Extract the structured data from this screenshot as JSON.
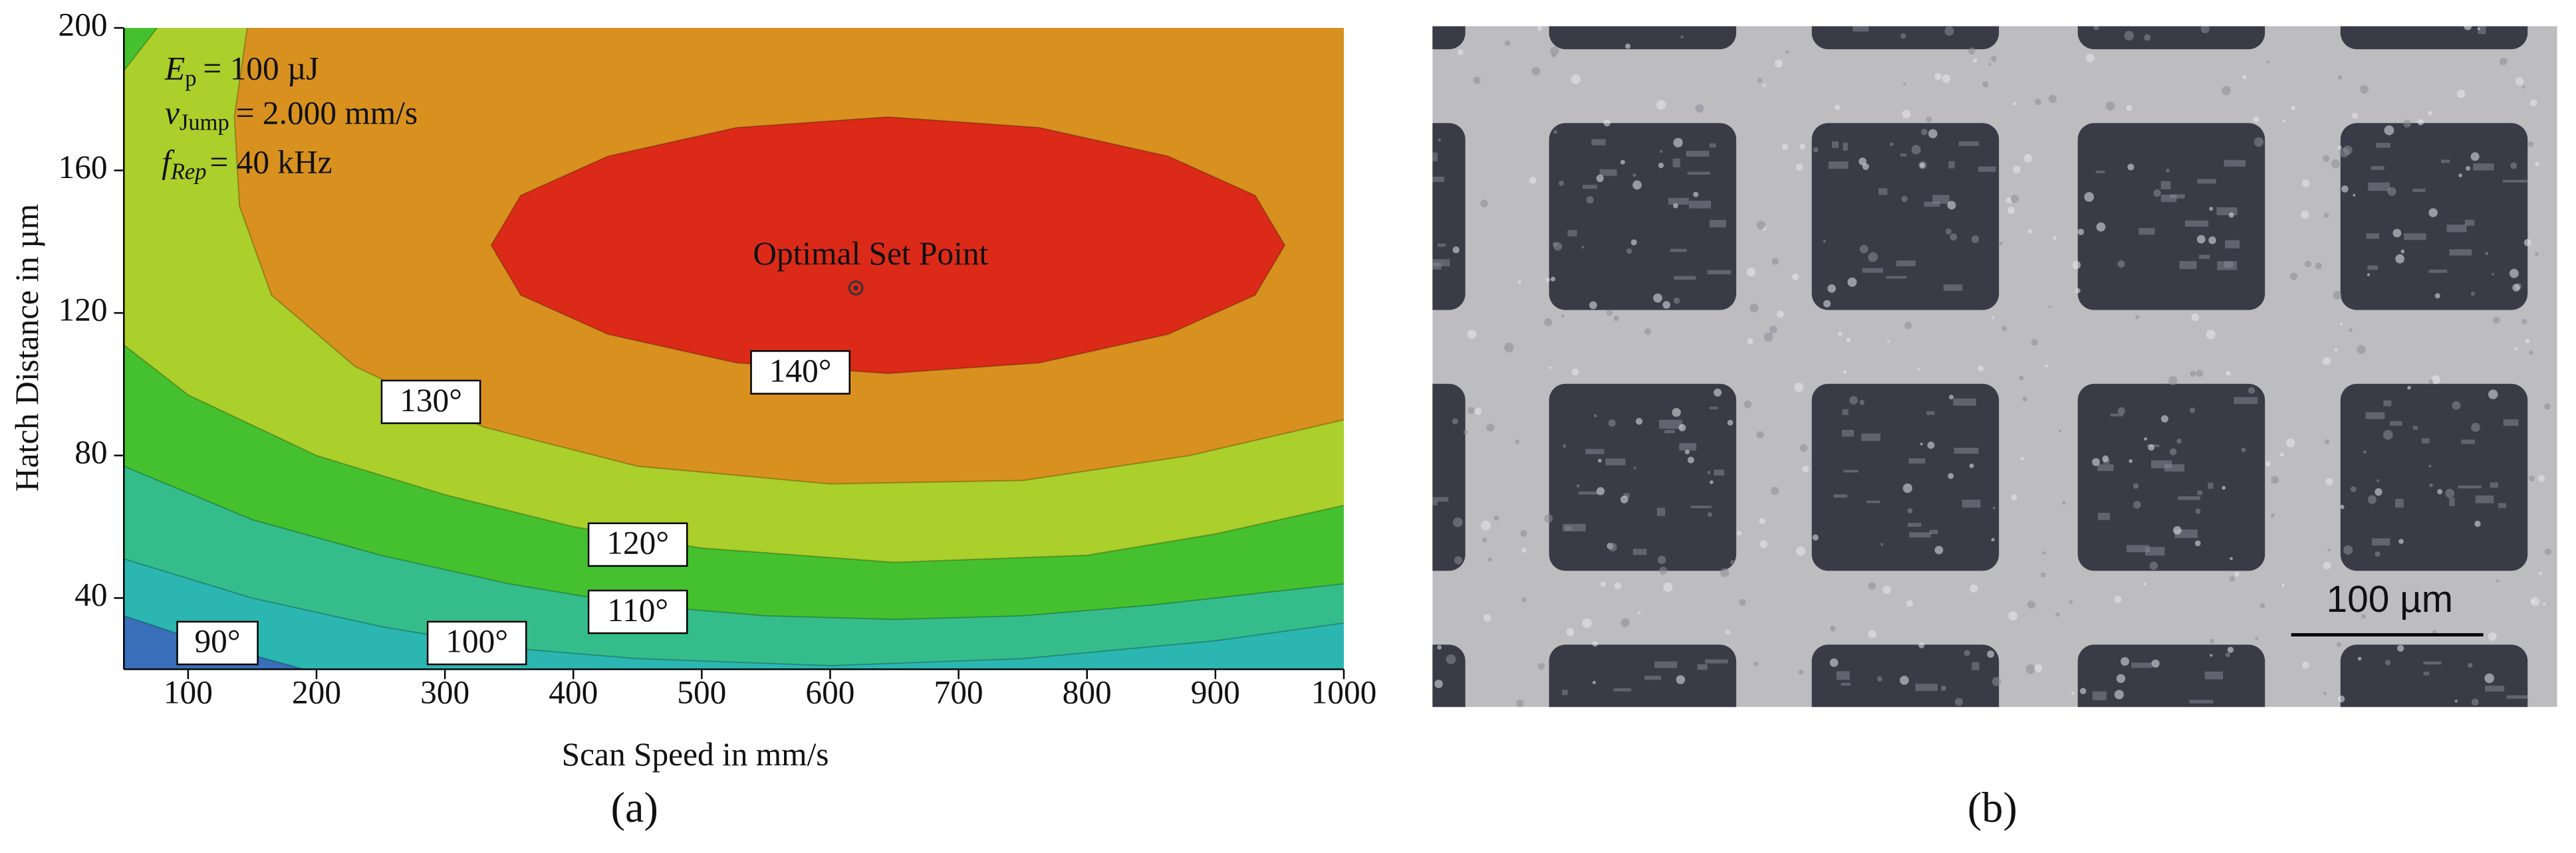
{
  "chart_data": {
    "type": "contour",
    "xlabel": "Scan Speed in mm/s",
    "ylabel": "Hatch Distance in µm",
    "xlim": [
      50,
      1000
    ],
    "ylim": [
      20,
      200
    ],
    "xticks": [
      100,
      200,
      300,
      400,
      500,
      600,
      700,
      800,
      900,
      1000
    ],
    "yticks": [
      40,
      80,
      120,
      160,
      200
    ],
    "background_color": "#3a6fb9",
    "contours": [
      {
        "level": 90,
        "label": "90°",
        "color": "#2bb6b2",
        "x": [
          50,
          100,
          150,
          190
        ],
        "y": [
          35,
          29,
          24,
          20
        ]
      },
      {
        "level": 100,
        "label": "100°",
        "color": "#34bd8b",
        "x": [
          50,
          150,
          250,
          350,
          450,
          600,
          750,
          900,
          1000
        ],
        "y": [
          51,
          40,
          32,
          26,
          23,
          21,
          23,
          28,
          33
        ]
      },
      {
        "level": 110,
        "label": "110°",
        "color": "#45c12f",
        "x": [
          50,
          150,
          250,
          350,
          450,
          550,
          650,
          750,
          850,
          1000
        ],
        "y": [
          77,
          62,
          52,
          44,
          38,
          35,
          34,
          35,
          38,
          44
        ]
      },
      {
        "level": 120,
        "label": "120°",
        "color": "#abcf2b",
        "x": [
          50,
          100,
          200,
          300,
          400,
          500,
          650,
          800,
          900,
          1000,
          null,
          76,
          50
        ],
        "y": [
          111,
          97,
          80,
          69,
          60,
          54,
          50,
          52,
          58,
          66,
          null,
          200,
          188
        ]
      },
      {
        "level": 130,
        "label": "130°",
        "color": "#d8911f",
        "x": [
          146,
          136,
          140,
          165,
          230,
          330,
          450,
          600,
          750,
          880,
          1000
        ],
        "y": [
          200,
          175,
          150,
          125,
          105,
          88,
          77,
          72,
          73,
          80,
          90
        ]
      },
      {
        "level": 140,
        "label": "140°",
        "color": "#dc2a19",
        "x": [
          954,
          931,
          863,
          763,
          645,
          527,
          427,
          359,
          336,
          359,
          427,
          527,
          645,
          763,
          863,
          931
        ],
        "y": [
          139,
          153,
          164,
          172,
          175,
          172,
          164,
          153,
          139,
          125,
          114,
          106,
          103,
          106,
          114,
          125
        ]
      }
    ],
    "optimum": {
      "label": "Optimal Set Point",
      "x": 620,
      "y": 127
    },
    "annotations": [
      {
        "symbol": "E",
        "subscript": "p",
        "text": "= 100 µJ"
      },
      {
        "symbol": "v",
        "subscript": "Jump",
        "text": "= 2.000 mm/s"
      },
      {
        "symbol": "f",
        "subscript": "Rep",
        "text": "= 40 kHz"
      }
    ],
    "panel_label": "(a)"
  },
  "micrograph": {
    "scale_bar": "100 µm",
    "panel_label": "(b)"
  }
}
